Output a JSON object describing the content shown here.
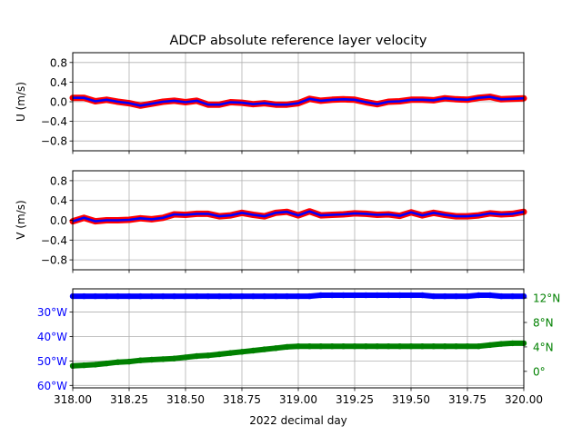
{
  "title": "ADCP absolute reference layer velocity",
  "colors": {
    "frame": "#000000",
    "grid": "#b0b0b0",
    "u_points": "#ff0000",
    "u_line": "#0000ff",
    "lon": "#0000ff",
    "lat": "#008000",
    "background": "#ffffff"
  },
  "chart_data": [
    {
      "type": "scatter",
      "name": "u-panel",
      "ylabel": "U (m/s)",
      "xlim": [
        318.0,
        320.0
      ],
      "ylim": [
        -1.0,
        1.0
      ],
      "yticks": [
        -0.8,
        -0.4,
        0.0,
        0.4,
        0.8
      ],
      "ytick_labels": [
        "−0.8",
        "−0.4",
        "0.0",
        "0.4",
        "0.8"
      ],
      "grid": true,
      "x": [
        318.0,
        318.05,
        318.1,
        318.15,
        318.2,
        318.25,
        318.3,
        318.35,
        318.4,
        318.45,
        318.5,
        318.55,
        318.6,
        318.65,
        318.7,
        318.75,
        318.8,
        318.85,
        318.9,
        318.95,
        319.0,
        319.05,
        319.1,
        319.15,
        319.2,
        319.25,
        319.3,
        319.35,
        319.4,
        319.45,
        319.5,
        319.55,
        319.6,
        319.65,
        319.7,
        319.75,
        319.8,
        319.85,
        319.9,
        319.95,
        320.0
      ],
      "series": [
        {
          "values": [
            0.08,
            0.08,
            0.01,
            0.04,
            0.0,
            -0.03,
            -0.08,
            -0.04,
            0.0,
            0.02,
            -0.01,
            0.02,
            -0.06,
            -0.06,
            -0.01,
            -0.02,
            -0.05,
            -0.03,
            -0.06,
            -0.06,
            -0.03,
            0.06,
            0.02,
            0.04,
            0.05,
            0.04,
            -0.01,
            -0.05,
            0.0,
            0.01,
            0.04,
            0.04,
            0.03,
            0.07,
            0.05,
            0.04,
            0.08,
            0.1,
            0.05,
            0.06,
            0.07
          ]
        }
      ]
    },
    {
      "type": "scatter",
      "name": "v-panel",
      "ylabel": "V (m/s)",
      "xlim": [
        318.0,
        320.0
      ],
      "ylim": [
        -1.0,
        1.0
      ],
      "yticks": [
        -0.8,
        -0.4,
        0.0,
        0.4,
        0.8
      ],
      "ytick_labels": [
        "−0.8",
        "−0.4",
        "0.0",
        "0.4",
        "0.8"
      ],
      "grid": true,
      "x": [
        318.0,
        318.05,
        318.1,
        318.15,
        318.2,
        318.25,
        318.3,
        318.35,
        318.4,
        318.45,
        318.5,
        318.55,
        318.6,
        318.65,
        318.7,
        318.75,
        318.8,
        318.85,
        318.9,
        318.95,
        319.0,
        319.05,
        319.1,
        319.15,
        319.2,
        319.25,
        319.3,
        319.35,
        319.4,
        319.45,
        319.5,
        319.55,
        319.6,
        319.65,
        319.7,
        319.75,
        319.8,
        319.85,
        319.9,
        319.95,
        320.0
      ],
      "series": [
        {
          "values": [
            -0.02,
            0.05,
            -0.02,
            0.0,
            0.0,
            0.01,
            0.04,
            0.02,
            0.05,
            0.12,
            0.11,
            0.13,
            0.13,
            0.08,
            0.1,
            0.15,
            0.11,
            0.08,
            0.15,
            0.17,
            0.1,
            0.18,
            0.1,
            0.11,
            0.12,
            0.14,
            0.13,
            0.11,
            0.12,
            0.09,
            0.16,
            0.1,
            0.15,
            0.11,
            0.08,
            0.08,
            0.1,
            0.14,
            0.12,
            0.13,
            0.17
          ]
        }
      ]
    },
    {
      "type": "scatter",
      "name": "position-panel",
      "xlabel": "2022 decimal day",
      "xlim": [
        318.0,
        320.0
      ],
      "xticks": [
        318.0,
        318.25,
        318.5,
        318.75,
        319.0,
        319.25,
        319.5,
        319.75,
        320.0
      ],
      "xtick_labels": [
        "318.00",
        "318.25",
        "318.50",
        "318.75",
        "319.00",
        "319.25",
        "319.50",
        "319.75",
        "320.00"
      ],
      "grid": true,
      "left_axis": {
        "ylim": [
          -61.0,
          -20.5
        ],
        "yticks": [
          -30,
          -40,
          -50,
          -60
        ],
        "ytick_labels": [
          "30°W",
          "40°W",
          "50°W",
          "60°W"
        ]
      },
      "right_axis": {
        "ylim": [
          -2.7,
          13.5
        ],
        "yticks": [
          0,
          4,
          8,
          12
        ],
        "ytick_labels": [
          "0°",
          "4°N",
          "8°N",
          "12°N"
        ]
      },
      "x": [
        318.0,
        318.05,
        318.1,
        318.15,
        318.2,
        318.25,
        318.3,
        318.35,
        318.4,
        318.45,
        318.5,
        318.55,
        318.6,
        318.65,
        318.7,
        318.75,
        318.8,
        318.85,
        318.9,
        318.95,
        319.0,
        319.05,
        319.1,
        319.15,
        319.2,
        319.25,
        319.3,
        319.35,
        319.4,
        319.45,
        319.5,
        319.55,
        319.6,
        319.65,
        319.7,
        319.75,
        319.8,
        319.85,
        319.9,
        319.95,
        320.0
      ],
      "series": [
        {
          "axis": "left",
          "values": [
            -23.5,
            -23.5,
            -23.5,
            -23.5,
            -23.5,
            -23.5,
            -23.5,
            -23.5,
            -23.5,
            -23.5,
            -23.5,
            -23.5,
            -23.5,
            -23.5,
            -23.5,
            -23.5,
            -23.5,
            -23.5,
            -23.5,
            -23.5,
            -23.5,
            -23.5,
            -23.1,
            -23.1,
            -23.1,
            -23.1,
            -23.1,
            -23.1,
            -23.1,
            -23.1,
            -23.1,
            -23.1,
            -23.5,
            -23.5,
            -23.5,
            -23.5,
            -23.1,
            -23.1,
            -23.5,
            -23.5,
            -23.5
          ]
        },
        {
          "axis": "right",
          "values": [
            0.9,
            1.0,
            1.1,
            1.3,
            1.5,
            1.6,
            1.8,
            1.9,
            2.0,
            2.1,
            2.3,
            2.5,
            2.6,
            2.8,
            3.0,
            3.2,
            3.4,
            3.6,
            3.8,
            4.0,
            4.1,
            4.1,
            4.1,
            4.1,
            4.1,
            4.1,
            4.1,
            4.1,
            4.1,
            4.1,
            4.1,
            4.1,
            4.1,
            4.1,
            4.1,
            4.1,
            4.1,
            4.3,
            4.5,
            4.6,
            4.6
          ]
        }
      ]
    }
  ]
}
